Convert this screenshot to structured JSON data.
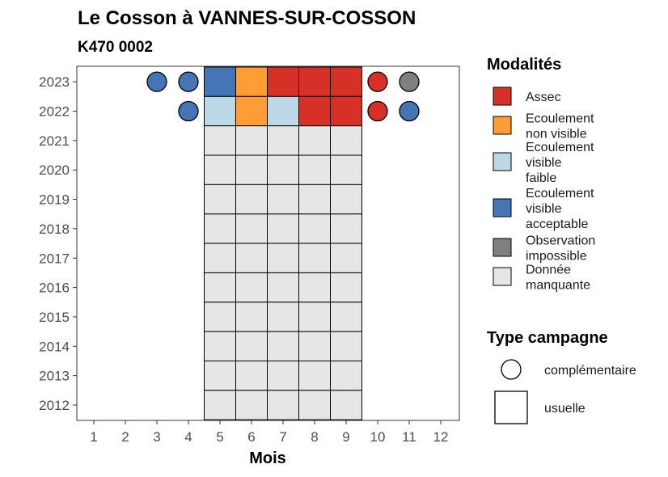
{
  "chart_data": {
    "type": "heatmap",
    "title": "Le Cosson à VANNES-SUR-COSSON",
    "subtitle": "K470 0002",
    "xlabel": "Mois",
    "ylabel": "",
    "x_ticks": [
      "1",
      "2",
      "3",
      "4",
      "5",
      "6",
      "7",
      "8",
      "9",
      "10",
      "11",
      "12"
    ],
    "y_ticks": [
      "2012",
      "2013",
      "2014",
      "2015",
      "2016",
      "2017",
      "2018",
      "2019",
      "2020",
      "2021",
      "2022",
      "2023"
    ],
    "grid": false,
    "legend_position": "right",
    "modalites": {
      "title": "Modalités",
      "items": [
        {
          "key": "assec",
          "label_lines": [
            "Assec"
          ],
          "color": "#d73027"
        },
        {
          "key": "ecoul_nv",
          "label_lines": [
            "Ecoulement",
            "non visible"
          ],
          "color": "#fd9d33"
        },
        {
          "key": "ecoul_vf",
          "label_lines": [
            "Ecoulement",
            "visible",
            "faible"
          ],
          "color": "#bcd7e6"
        },
        {
          "key": "ecoul_va",
          "label_lines": [
            "Ecoulement",
            "visible",
            "acceptable"
          ],
          "color": "#4575b4"
        },
        {
          "key": "obs_imp",
          "label_lines": [
            "Observation",
            "impossible"
          ],
          "color": "#808080"
        },
        {
          "key": "manquante",
          "label_lines": [
            "Donnée",
            "manquante"
          ],
          "color": "#e6e6e6"
        }
      ]
    },
    "type_campagne": {
      "title": "Type campagne",
      "items": [
        {
          "key": "complementaire",
          "label": "complémentaire",
          "shape": "circle"
        },
        {
          "key": "usuelle",
          "label": "usuelle",
          "shape": "square"
        }
      ]
    },
    "usuelle": [
      {
        "year": 2023,
        "month": 5,
        "modalite": "ecoul_va"
      },
      {
        "year": 2023,
        "month": 6,
        "modalite": "ecoul_nv"
      },
      {
        "year": 2023,
        "month": 7,
        "modalite": "assec"
      },
      {
        "year": 2023,
        "month": 8,
        "modalite": "assec"
      },
      {
        "year": 2023,
        "month": 9,
        "modalite": "assec"
      },
      {
        "year": 2022,
        "month": 5,
        "modalite": "ecoul_vf"
      },
      {
        "year": 2022,
        "month": 6,
        "modalite": "ecoul_nv"
      },
      {
        "year": 2022,
        "month": 7,
        "modalite": "ecoul_vf"
      },
      {
        "year": 2022,
        "month": 8,
        "modalite": "assec"
      },
      {
        "year": 2022,
        "month": 9,
        "modalite": "assec"
      },
      {
        "year": 2021,
        "month": 5,
        "modalite": "manquante"
      },
      {
        "year": 2021,
        "month": 6,
        "modalite": "manquante"
      },
      {
        "year": 2021,
        "month": 7,
        "modalite": "manquante"
      },
      {
        "year": 2021,
        "month": 8,
        "modalite": "manquante"
      },
      {
        "year": 2021,
        "month": 9,
        "modalite": "manquante"
      },
      {
        "year": 2020,
        "month": 5,
        "modalite": "manquante"
      },
      {
        "year": 2020,
        "month": 6,
        "modalite": "manquante"
      },
      {
        "year": 2020,
        "month": 7,
        "modalite": "manquante"
      },
      {
        "year": 2020,
        "month": 8,
        "modalite": "manquante"
      },
      {
        "year": 2020,
        "month": 9,
        "modalite": "manquante"
      },
      {
        "year": 2019,
        "month": 5,
        "modalite": "manquante"
      },
      {
        "year": 2019,
        "month": 6,
        "modalite": "manquante"
      },
      {
        "year": 2019,
        "month": 7,
        "modalite": "manquante"
      },
      {
        "year": 2019,
        "month": 8,
        "modalite": "manquante"
      },
      {
        "year": 2019,
        "month": 9,
        "modalite": "manquante"
      },
      {
        "year": 2018,
        "month": 5,
        "modalite": "manquante"
      },
      {
        "year": 2018,
        "month": 6,
        "modalite": "manquante"
      },
      {
        "year": 2018,
        "month": 7,
        "modalite": "manquante"
      },
      {
        "year": 2018,
        "month": 8,
        "modalite": "manquante"
      },
      {
        "year": 2018,
        "month": 9,
        "modalite": "manquante"
      },
      {
        "year": 2017,
        "month": 5,
        "modalite": "manquante"
      },
      {
        "year": 2017,
        "month": 6,
        "modalite": "manquante"
      },
      {
        "year": 2017,
        "month": 7,
        "modalite": "manquante"
      },
      {
        "year": 2017,
        "month": 8,
        "modalite": "manquante"
      },
      {
        "year": 2017,
        "month": 9,
        "modalite": "manquante"
      },
      {
        "year": 2016,
        "month": 5,
        "modalite": "manquante"
      },
      {
        "year": 2016,
        "month": 6,
        "modalite": "manquante"
      },
      {
        "year": 2016,
        "month": 7,
        "modalite": "manquante"
      },
      {
        "year": 2016,
        "month": 8,
        "modalite": "manquante"
      },
      {
        "year": 2016,
        "month": 9,
        "modalite": "manquante"
      },
      {
        "year": 2015,
        "month": 5,
        "modalite": "manquante"
      },
      {
        "year": 2015,
        "month": 6,
        "modalite": "manquante"
      },
      {
        "year": 2015,
        "month": 7,
        "modalite": "manquante"
      },
      {
        "year": 2015,
        "month": 8,
        "modalite": "manquante"
      },
      {
        "year": 2015,
        "month": 9,
        "modalite": "manquante"
      },
      {
        "year": 2014,
        "month": 5,
        "modalite": "manquante"
      },
      {
        "year": 2014,
        "month": 6,
        "modalite": "manquante"
      },
      {
        "year": 2014,
        "month": 7,
        "modalite": "manquante"
      },
      {
        "year": 2014,
        "month": 8,
        "modalite": "manquante"
      },
      {
        "year": 2014,
        "month": 9,
        "modalite": "manquante"
      },
      {
        "year": 2013,
        "month": 5,
        "modalite": "manquante"
      },
      {
        "year": 2013,
        "month": 6,
        "modalite": "manquante"
      },
      {
        "year": 2013,
        "month": 7,
        "modalite": "manquante"
      },
      {
        "year": 2013,
        "month": 8,
        "modalite": "manquante"
      },
      {
        "year": 2013,
        "month": 9,
        "modalite": "manquante"
      },
      {
        "year": 2012,
        "month": 5,
        "modalite": "manquante"
      },
      {
        "year": 2012,
        "month": 6,
        "modalite": "manquante"
      },
      {
        "year": 2012,
        "month": 7,
        "modalite": "manquante"
      },
      {
        "year": 2012,
        "month": 8,
        "modalite": "manquante"
      },
      {
        "year": 2012,
        "month": 9,
        "modalite": "manquante"
      }
    ],
    "complementaire": [
      {
        "year": 2023,
        "month": 3,
        "modalite": "ecoul_va"
      },
      {
        "year": 2023,
        "month": 4,
        "modalite": "ecoul_va"
      },
      {
        "year": 2023,
        "month": 10,
        "modalite": "assec"
      },
      {
        "year": 2023,
        "month": 11,
        "modalite": "obs_imp"
      },
      {
        "year": 2022,
        "month": 4,
        "modalite": "ecoul_va"
      },
      {
        "year": 2022,
        "month": 10,
        "modalite": "assec"
      },
      {
        "year": 2022,
        "month": 11,
        "modalite": "ecoul_va"
      }
    ]
  }
}
